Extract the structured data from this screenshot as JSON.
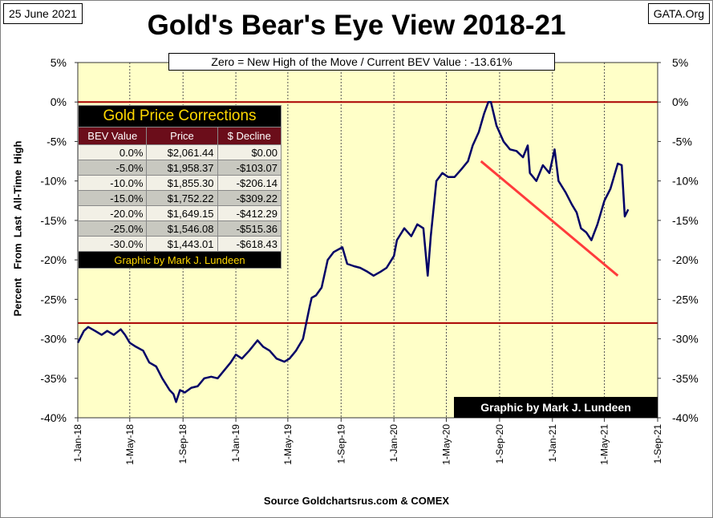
{
  "header": {
    "date": "25 June 2021",
    "site": "GATA.Org",
    "title": "Gold's Bear's Eye View 2018-21",
    "subtitle": "Zero = New High of the Move / Current  BEV Value : -13.61%",
    "source": "Source Goldchartsrus.com  & COMEX",
    "credit": "Graphic by Mark J. Lundeen"
  },
  "ylabel": "Percent   From  Last  All-Time  High",
  "table": {
    "title": "Gold Price Corrections",
    "headers": [
      "BEV Value",
      "Price",
      "$ Decline"
    ],
    "rows": [
      [
        "0.0%",
        "$2,061.44",
        "$0.00"
      ],
      [
        "-5.0%",
        "$1,958.37",
        "-$103.07"
      ],
      [
        "-10.0%",
        "$1,855.30",
        "-$206.14"
      ],
      [
        "-15.0%",
        "$1,752.22",
        "-$309.22"
      ],
      [
        "-20.0%",
        "$1,649.15",
        "-$412.29"
      ],
      [
        "-25.0%",
        "$1,546.08",
        "-$515.36"
      ],
      [
        "-30.0%",
        "$1,443.01",
        "-$618.43"
      ]
    ],
    "credit": "Graphic by Mark J. Lundeen"
  },
  "colors": {
    "plot_bg": "#ffffc8",
    "series": "#000066",
    "ref_lines": "#aa0000",
    "trend": "#ff3b3b"
  },
  "chart_data": {
    "type": "line",
    "ylim": [
      -40,
      5
    ],
    "yticks": [
      5,
      0,
      -5,
      -10,
      -15,
      -20,
      -25,
      -30,
      -35,
      -40
    ],
    "ytick_labels": [
      "5%",
      "0%",
      "-5%",
      "-10%",
      "-15%",
      "-20%",
      "-25%",
      "-30%",
      "-35%",
      "-40%"
    ],
    "xlim": [
      "2018-01-01",
      "2021-09-01"
    ],
    "xticks": [
      "2018-01-01",
      "2018-05-01",
      "2018-09-01",
      "2019-01-01",
      "2019-05-01",
      "2019-09-01",
      "2020-01-01",
      "2020-05-01",
      "2020-09-01",
      "2021-01-01",
      "2021-05-01",
      "2021-09-01"
    ],
    "xtick_labels": [
      "1-Jan-18",
      "1-May-18",
      "1-Sep-18",
      "1-Jan-19",
      "1-May-19",
      "1-Sep-19",
      "1-Jan-20",
      "1-May-20",
      "1-Sep-20",
      "1-Jan-21",
      "1-May-21",
      "1-Sep-21"
    ],
    "grid": "vertical",
    "reference_lines": [
      0,
      -28
    ],
    "trend_line": {
      "from": [
        "2020-07-20",
        -7.5
      ],
      "to": [
        "2021-06-01",
        -22
      ]
    },
    "series": [
      {
        "x": [
          "2018-01-01",
          "2018-01-15",
          "2018-01-25",
          "2018-02-10",
          "2018-02-25",
          "2018-03-10",
          "2018-03-25",
          "2018-04-10",
          "2018-04-20",
          "2018-05-01",
          "2018-05-15",
          "2018-06-01",
          "2018-06-15",
          "2018-07-01",
          "2018-07-15",
          "2018-08-01",
          "2018-08-10",
          "2018-08-16",
          "2018-08-25",
          "2018-09-05",
          "2018-09-20",
          "2018-10-05",
          "2018-10-20",
          "2018-11-05",
          "2018-11-20",
          "2018-12-05",
          "2018-12-20",
          "2019-01-01",
          "2019-01-15",
          "2019-02-01",
          "2019-02-20",
          "2019-03-05",
          "2019-03-20",
          "2019-04-05",
          "2019-04-23",
          "2019-05-05",
          "2019-05-20",
          "2019-06-05",
          "2019-06-20",
          "2019-06-25",
          "2019-07-05",
          "2019-07-18",
          "2019-08-01",
          "2019-08-15",
          "2019-09-04",
          "2019-09-15",
          "2019-10-01",
          "2019-10-15",
          "2019-11-01",
          "2019-11-15",
          "2019-12-01",
          "2019-12-15",
          "2020-01-01",
          "2020-01-08",
          "2020-01-25",
          "2020-02-10",
          "2020-02-24",
          "2020-03-09",
          "2020-03-19",
          "2020-03-26",
          "2020-04-08",
          "2020-04-22",
          "2020-05-05",
          "2020-05-20",
          "2020-06-05",
          "2020-06-20",
          "2020-07-01",
          "2020-07-15",
          "2020-07-27",
          "2020-08-06",
          "2020-08-12",
          "2020-08-25",
          "2020-09-10",
          "2020-09-25",
          "2020-10-10",
          "2020-10-25",
          "2020-11-05",
          "2020-11-10",
          "2020-11-25",
          "2020-12-10",
          "2020-12-25",
          "2021-01-06",
          "2021-01-15",
          "2021-02-01",
          "2021-02-15",
          "2021-02-26",
          "2021-03-08",
          "2021-03-20",
          "2021-04-01",
          "2021-04-15",
          "2021-05-01",
          "2021-05-15",
          "2021-06-01",
          "2021-06-10",
          "2021-06-17",
          "2021-06-25"
        ],
        "y": [
          -30.5,
          -29,
          -28.5,
          -29,
          -29.5,
          -29,
          -29.5,
          -28.8,
          -29.5,
          -30.5,
          -31,
          -31.5,
          -33,
          -33.5,
          -35,
          -36.5,
          -37,
          -38,
          -36.5,
          -36.8,
          -36.2,
          -36,
          -35,
          -34.8,
          -35,
          -34,
          -33,
          -32,
          -32.5,
          -31.5,
          -30.2,
          -31,
          -31.5,
          -32.5,
          -32.9,
          -32.5,
          -31.5,
          -30,
          -26,
          -24.8,
          -24.5,
          -23.5,
          -20,
          -19,
          -18.4,
          -20.5,
          -20.8,
          -21,
          -21.5,
          -22,
          -21.5,
          -21,
          -19.5,
          -17.5,
          -16,
          -17,
          -15.5,
          -16,
          -22,
          -17,
          -10,
          -9,
          -9.5,
          -9.5,
          -8.5,
          -7.5,
          -5.5,
          -3.8,
          -1.5,
          0,
          0,
          -3,
          -5,
          -6,
          -6.2,
          -7,
          -5.5,
          -9,
          -10,
          -8,
          -9,
          -6,
          -10,
          -11.5,
          -13,
          -14,
          -16,
          -16.5,
          -17.5,
          -15.5,
          -12.5,
          -11,
          -7.8,
          -8,
          -14.5,
          -13.61
        ]
      }
    ]
  }
}
